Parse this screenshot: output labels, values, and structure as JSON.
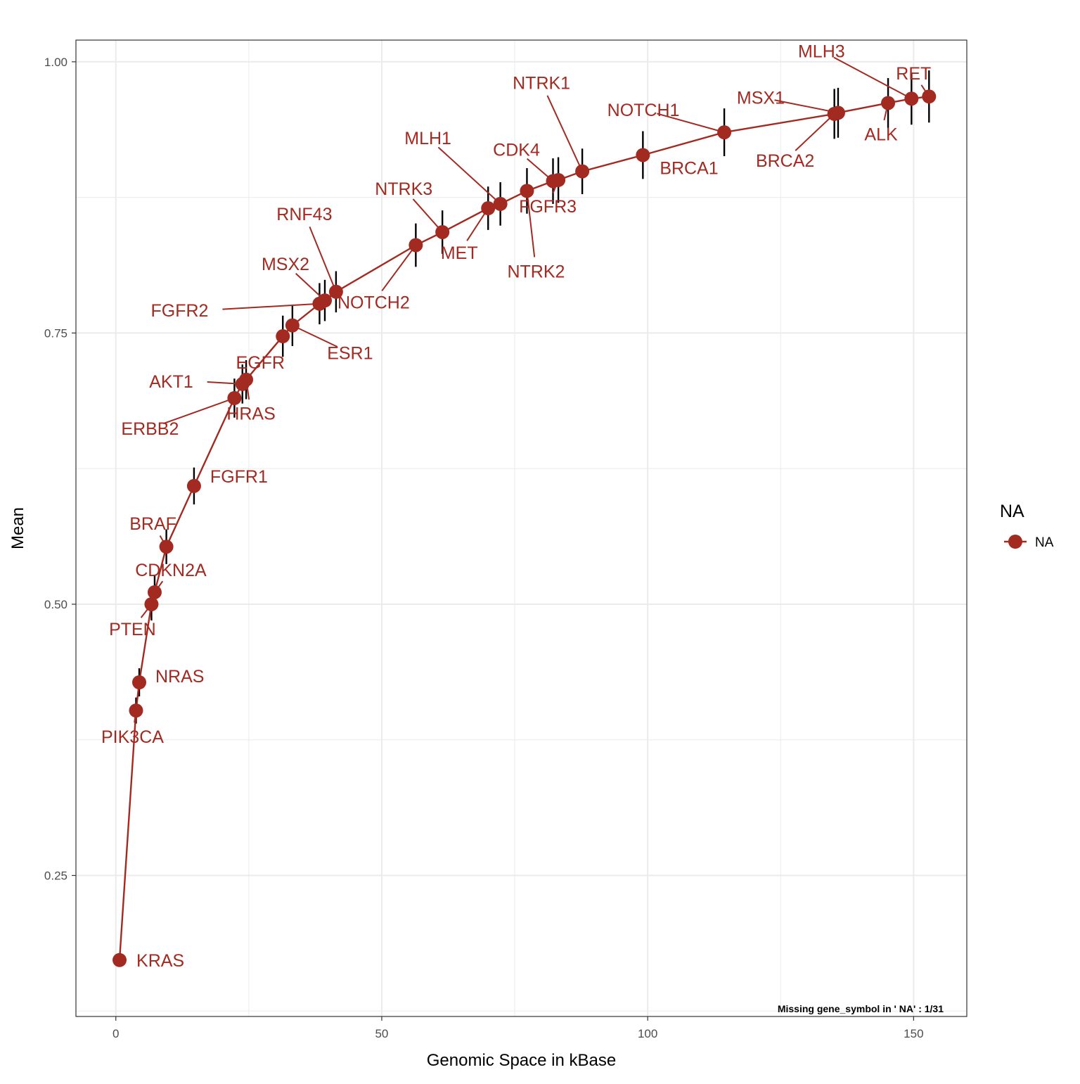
{
  "chart_data": {
    "type": "line",
    "xlabel": "Genomic Space in kBase",
    "ylabel": "Mean",
    "xlim": [
      -7.5,
      160
    ],
    "ylim": [
      0.12,
      1.02
    ],
    "x_ticks": [
      0,
      50,
      100,
      150
    ],
    "x_tick_labels": [
      "0",
      "50",
      "100",
      "150"
    ],
    "y_ticks": [
      0.25,
      0.5,
      0.75,
      1.0
    ],
    "y_tick_labels": [
      "0.25",
      "0.50",
      "0.75",
      "1.00"
    ],
    "grid": true,
    "legend": {
      "title": "NA",
      "entries": [
        "NA"
      ],
      "position": "right"
    },
    "caption": "Missing gene_symbol in ' NA' : 1/31",
    "colors": {
      "series": "#A32A21",
      "error_bar": "#000000",
      "grid": "#EBEBEB",
      "panel_border": "#333333"
    },
    "series": [
      {
        "name": "NA",
        "points": [
          {
            "label": "KRAS",
            "x": 0.7,
            "y": 0.172,
            "err": 0.006,
            "label_dx": 24,
            "label_dy": 0
          },
          {
            "label": "PIK3CA",
            "x": 3.8,
            "y": 0.402,
            "err": 0.012,
            "label_dx": -5,
            "label_dy": 37
          },
          {
            "label": "NRAS",
            "x": 4.4,
            "y": 0.428,
            "err": 0.013,
            "label_dx": 23,
            "label_dy": -9
          },
          {
            "label": "PTEN",
            "x": 6.7,
            "y": 0.5,
            "err": 0.015,
            "label_dx": -27,
            "label_dy": 35
          },
          {
            "label": "CDKN2A",
            "x": 7.3,
            "y": 0.511,
            "err": 0.016,
            "label_dx": 23,
            "label_dy": -32
          },
          {
            "label": "BRAF",
            "x": 9.5,
            "y": 0.553,
            "err": 0.016,
            "label_dx": -19,
            "label_dy": -33
          },
          {
            "label": "FGFR1",
            "x": 14.7,
            "y": 0.609,
            "err": 0.017,
            "label_dx": 23,
            "label_dy": -14
          },
          {
            "label": "ERBB2",
            "x": 22.3,
            "y": 0.69,
            "err": 0.018,
            "label_dx": -120,
            "label_dy": 43
          },
          {
            "label": "AKT1",
            "x": 23.8,
            "y": 0.703,
            "err": 0.018,
            "label_dx": -70,
            "label_dy": -4
          },
          {
            "label": "HRAS",
            "x": 24.5,
            "y": 0.707,
            "err": 0.018,
            "label_dx": 7,
            "label_dy": 48
          },
          {
            "label": "EGFR",
            "x": 31.4,
            "y": 0.747,
            "err": 0.019,
            "label_dx": -32,
            "label_dy": 37
          },
          {
            "label": "ESR1",
            "x": 33.2,
            "y": 0.757,
            "err": 0.019,
            "label_dx": 82,
            "label_dy": 39
          },
          {
            "label": "FGFR2",
            "x": 38.3,
            "y": 0.777,
            "err": 0.019,
            "label_dx": -158,
            "label_dy": 9
          },
          {
            "label": "MSX2",
            "x": 39.3,
            "y": 0.78,
            "err": 0.019,
            "label_dx": -56,
            "label_dy": -52
          },
          {
            "label": "RNF43",
            "x": 41.4,
            "y": 0.788,
            "err": 0.019,
            "label_dx": -45,
            "label_dy": -111
          },
          {
            "label": "NOTCH2",
            "x": 56.4,
            "y": 0.831,
            "err": 0.02,
            "label_dx": -60,
            "label_dy": 81
          },
          {
            "label": "NTRK3",
            "x": 61.4,
            "y": 0.843,
            "err": 0.02,
            "label_dx": -55,
            "label_dy": -62
          },
          {
            "label": "MET",
            "x": 70.0,
            "y": 0.865,
            "err": 0.02,
            "label_dx": -41,
            "label_dy": 63
          },
          {
            "label": "MLH1",
            "x": 72.3,
            "y": 0.869,
            "err": 0.02,
            "label_dx": -103,
            "label_dy": -94
          },
          {
            "label": "NTRK2",
            "x": 77.3,
            "y": 0.881,
            "err": 0.021,
            "label_dx": 13,
            "label_dy": 114
          },
          {
            "label": "CDK4",
            "x": 82.2,
            "y": 0.89,
            "err": 0.021,
            "label_dx": -52,
            "label_dy": -45
          },
          {
            "label": "FGFR3",
            "x": 83.2,
            "y": 0.891,
            "err": 0.021,
            "label_dx": -15,
            "label_dy": 37
          },
          {
            "label": "NTRK1",
            "x": 87.7,
            "y": 0.899,
            "err": 0.021,
            "label_dx": -58,
            "label_dy": -126
          },
          {
            "label": "BRCA1",
            "x": 99.1,
            "y": 0.914,
            "err": 0.022,
            "label_dx": 24,
            "label_dy": 18
          },
          {
            "label": "NOTCH1",
            "x": 114.4,
            "y": 0.935,
            "err": 0.022,
            "label_dx": -115,
            "label_dy": -32
          },
          {
            "label": "BRCA2",
            "x": 135.1,
            "y": 0.952,
            "err": 0.023,
            "label_dx": -70,
            "label_dy": 66
          },
          {
            "label": "MSX1",
            "x": 135.8,
            "y": 0.953,
            "err": 0.023,
            "label_dx": -110,
            "label_dy": -22
          },
          {
            "label": "ALK",
            "x": 145.2,
            "y": 0.962,
            "err": 0.023,
            "label_dx": -10,
            "label_dy": 44
          },
          {
            "label": "MLH3",
            "x": 149.6,
            "y": 0.966,
            "err": 0.024,
            "label_dx": -128,
            "label_dy": -68
          },
          {
            "label": "RET",
            "x": 152.9,
            "y": 0.968,
            "err": 0.024,
            "label_dx": -22,
            "label_dy": -33
          }
        ]
      }
    ]
  }
}
